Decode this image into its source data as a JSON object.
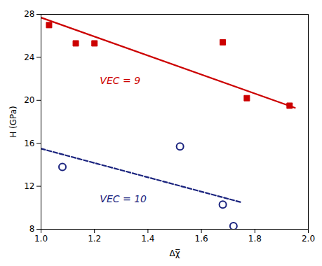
{
  "chart_data": {
    "type": "scatter",
    "xlabel": "Δχ̅",
    "ylabel": "H (GPa)",
    "series": [
      {
        "type": "scatter",
        "marker": "square",
        "color": "#CC0000",
        "x": [
          1.03,
          1.13,
          1.2,
          1.68,
          1.77,
          1.93
        ],
        "values": [
          27.0,
          25.3,
          25.3,
          25.4,
          20.2,
          19.5
        ]
      },
      {
        "type": "line",
        "line_style": "solid",
        "color": "#CC0000",
        "x": [
          1.0,
          1.95
        ],
        "values": [
          27.7,
          19.3
        ]
      },
      {
        "type": "scatter",
        "marker": "open_circle",
        "color": "#1A237E",
        "x": [
          1.08,
          1.52,
          1.68,
          1.72
        ],
        "values": [
          13.8,
          15.7,
          10.3,
          8.3
        ]
      },
      {
        "type": "line",
        "line_style": "dashed",
        "color": "#1A237E",
        "x": [
          1.0,
          1.75
        ],
        "values": [
          15.5,
          10.5
        ]
      }
    ],
    "annotations": [
      {
        "text": "VEC = 9",
        "x": 1.22,
        "y": 21.5,
        "color": "#CC0000"
      },
      {
        "text": "VEC = 10",
        "x": 1.22,
        "y": 10.5,
        "color": "#1A237E"
      }
    ],
    "xlim": [
      1.0,
      2.0
    ],
    "ylim": [
      8,
      28
    ],
    "xticks": [
      {
        "value": 1.0,
        "label": "1.0"
      },
      1.2,
      1.4,
      1.6,
      1.8,
      {
        "value": 2.0,
        "label": "2.0"
      }
    ],
    "yticks": [
      8,
      12,
      16,
      20,
      24,
      28
    ],
    "grid": false
  }
}
